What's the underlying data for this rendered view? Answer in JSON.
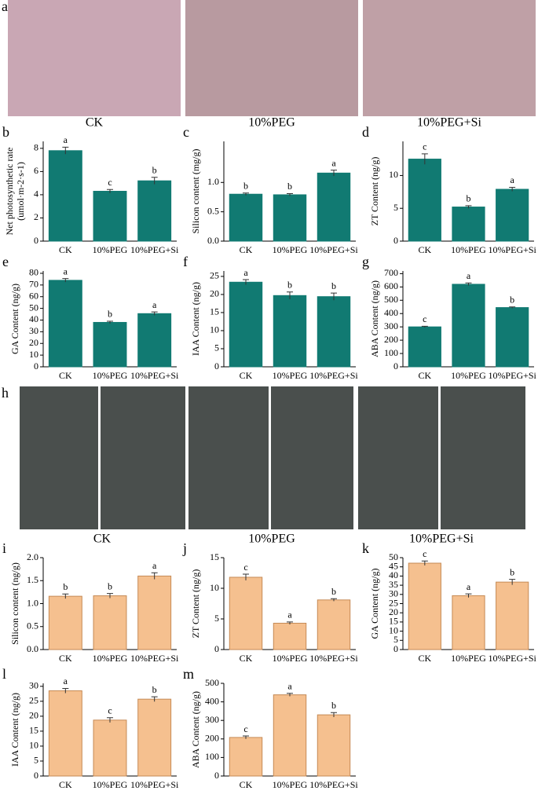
{
  "figure": {
    "photo_rows": [
      {
        "label": "a",
        "captions": [
          "CK",
          "10%PEG",
          "10%PEG+Si"
        ]
      },
      {
        "label": "h",
        "captions": [
          "CK",
          "10%PEG",
          "10%PEG+Si"
        ]
      }
    ]
  },
  "chart_data": [
    {
      "type": "bar",
      "label": "b",
      "ylabel": [
        "Net photosynthetic rate",
        "(umol·m-2·s-1)"
      ],
      "categories": [
        "CK",
        "10%PEG",
        "10%PEG+Si"
      ],
      "values": [
        7.8,
        4.3,
        5.2
      ],
      "errors": [
        0.3,
        0.15,
        0.3
      ],
      "annotations": [
        "a",
        "c",
        "b"
      ],
      "ylim": [
        0,
        8.6
      ],
      "yticks": [
        0,
        2,
        4,
        6,
        8
      ],
      "color": "#117a72"
    },
    {
      "type": "bar",
      "label": "c",
      "ylabel": "Silicon content (mg/g)",
      "categories": [
        "CK",
        "10%PEG",
        "10%PEG+Si"
      ],
      "values": [
        0.8,
        0.79,
        1.16
      ],
      "errors": [
        0.02,
        0.02,
        0.05
      ],
      "annotations": [
        "b",
        "b",
        "a"
      ],
      "ylim": [
        0,
        1.7
      ],
      "yticks": [
        {
          "value": 0,
          "label": "0.0"
        },
        0.5,
        {
          "value": 1,
          "label": "1.0"
        }
      ],
      "color": "#117a72"
    },
    {
      "type": "bar",
      "label": "d",
      "ylabel": "ZT Content (ng/g)",
      "categories": [
        "CK",
        "10%PEG",
        "10%PEG+Si"
      ],
      "values": [
        12.5,
        5.2,
        7.9
      ],
      "errors": [
        0.8,
        0.2,
        0.3
      ],
      "annotations": [
        "c",
        "b",
        "a"
      ],
      "ylim": [
        0,
        15.2
      ],
      "yticks": [
        0,
        5,
        10
      ],
      "color": "#117a72"
    },
    {
      "type": "bar",
      "label": "e",
      "ylabel": "GA Content (ng/g)",
      "categories": [
        "CK",
        "10%PEG",
        "10%PEG+Si"
      ],
      "values": [
        74,
        38,
        45.5
      ],
      "errors": [
        1.5,
        1,
        1.5
      ],
      "annotations": [
        "a",
        "b",
        "a"
      ],
      "ylim": [
        0,
        82
      ],
      "yticks": [
        0,
        10,
        20,
        30,
        40,
        50,
        60,
        70,
        80
      ],
      "color": "#117a72"
    },
    {
      "type": "bar",
      "label": "f",
      "ylabel": "IAA Content (ng/g)",
      "categories": [
        "CK",
        "10%PEG",
        "10%PEG+Si"
      ],
      "values": [
        23.4,
        19.7,
        19.4
      ],
      "errors": [
        0.7,
        1,
        1
      ],
      "annotations": [
        "a",
        "b",
        "b"
      ],
      "ylim": [
        0,
        26.5
      ],
      "yticks": [
        0,
        5,
        10,
        15,
        20,
        25
      ],
      "color": "#117a72"
    },
    {
      "type": "bar",
      "label": "g",
      "ylabel": "ABA Content (ng/g)",
      "categories": [
        "CK",
        "10%PEG",
        "10%PEG+Si"
      ],
      "values": [
        300,
        620,
        445
      ],
      "errors": [
        5,
        10,
        5
      ],
      "annotations": [
        "c",
        "a",
        "b"
      ],
      "ylim": [
        0,
        720
      ],
      "yticks": [
        0,
        100,
        200,
        300,
        400,
        500,
        600,
        700
      ],
      "color": "#117a72"
    },
    {
      "type": "bar",
      "label": "i",
      "ylabel": "Silicon content (ng/g)",
      "categories": [
        "CK",
        "10%PEG",
        "10%PEG+Si"
      ],
      "values": [
        1.16,
        1.17,
        1.6
      ],
      "errors": [
        0.05,
        0.05,
        0.07
      ],
      "annotations": [
        "b",
        "b",
        "a"
      ],
      "ylim": [
        0,
        2
      ],
      "yticks": [
        {
          "value": 0,
          "label": "0.0"
        },
        0.5,
        {
          "value": 1,
          "label": "1.0"
        },
        1.5,
        {
          "value": 2,
          "label": "2.0"
        }
      ],
      "color": "#f5c08f"
    },
    {
      "type": "bar",
      "label": "j",
      "ylabel": "ZT Content (ng/g)",
      "categories": [
        "CK",
        "10%PEG",
        "10%PEG+Si"
      ],
      "values": [
        11.8,
        4.3,
        8.1
      ],
      "errors": [
        0.5,
        0.2,
        0.2
      ],
      "annotations": [
        "c",
        "a",
        "b"
      ],
      "ylim": [
        0,
        15
      ],
      "yticks": [
        0,
        5,
        10,
        15
      ],
      "color": "#f5c08f"
    },
    {
      "type": "bar",
      "label": "k",
      "ylabel": "GA Content (ng/g)",
      "categories": [
        "CK",
        "10%PEG",
        "10%PEG+Si"
      ],
      "values": [
        47,
        29.3,
        36.7
      ],
      "errors": [
        1.2,
        1,
        1.5
      ],
      "annotations": [
        "c",
        "a",
        "b"
      ],
      "ylim": [
        0,
        50
      ],
      "yticks": [
        0,
        5,
        10,
        15,
        20,
        25,
        30,
        35,
        40,
        45,
        50
      ],
      "color": "#f5c08f"
    },
    {
      "type": "bar",
      "label": "l",
      "ylabel": "IAA Content (ng/g)",
      "categories": [
        "CK",
        "10%PEG",
        "10%PEG+Si"
      ],
      "values": [
        28.5,
        18.7,
        25.7
      ],
      "errors": [
        0.8,
        0.8,
        0.8
      ],
      "annotations": [
        "a",
        "c",
        "b"
      ],
      "ylim": [
        0,
        31
      ],
      "yticks": [
        0,
        5,
        10,
        15,
        20,
        25,
        30
      ],
      "color": "#f5c08f"
    },
    {
      "type": "bar",
      "label": "m",
      "ylabel": "ABA Content (ng/g)",
      "categories": [
        "CK",
        "10%PEG",
        "10%PEG+Si"
      ],
      "values": [
        208,
        438,
        330
      ],
      "errors": [
        8,
        8,
        12
      ],
      "annotations": [
        "c",
        "a",
        "b"
      ],
      "ylim": [
        0,
        500
      ],
      "yticks": [
        0,
        100,
        200,
        300,
        400,
        500
      ],
      "color": "#f5c08f"
    }
  ]
}
